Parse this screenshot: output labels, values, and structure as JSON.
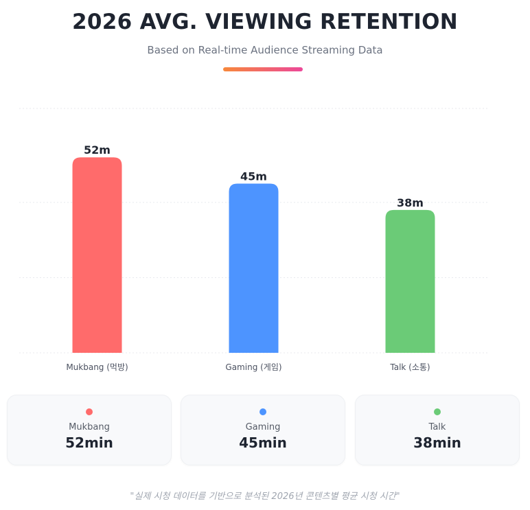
{
  "header": {
    "title": "2026 AVG. VIEWING RETENTION",
    "subtitle": "Based on Real-time Audience Streaming Data"
  },
  "chart_data": {
    "type": "bar",
    "categories": [
      "Mukbang (먹방)",
      "Gaming (게임)",
      "Talk (소통)"
    ],
    "values": [
      52,
      45,
      38
    ],
    "data_labels": [
      "52m",
      "45m",
      "38m"
    ],
    "colors": [
      "#ff6b6b",
      "#4d94ff",
      "#6bcb77"
    ],
    "ylim": [
      0,
      65
    ],
    "grid": true,
    "title": "2026 AVG. VIEWING RETENTION",
    "xlabel": "",
    "ylabel": ""
  },
  "cards": [
    {
      "label": "Mukbang",
      "value": "52min",
      "color": "#ff6b6b"
    },
    {
      "label": "Gaming",
      "value": "45min",
      "color": "#4d94ff"
    },
    {
      "label": "Talk",
      "value": "38min",
      "color": "#6bcb77"
    }
  ],
  "footnote": "\"실제 시청 데이터를 기반으로 분석된 2026년 콘텐츠별 평균 시청 시간\""
}
